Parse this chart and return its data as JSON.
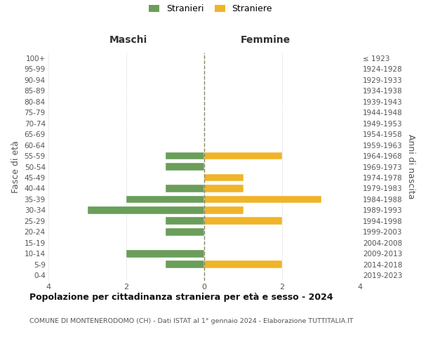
{
  "age_groups": [
    "100+",
    "95-99",
    "90-94",
    "85-89",
    "80-84",
    "75-79",
    "70-74",
    "65-69",
    "60-64",
    "55-59",
    "50-54",
    "45-49",
    "40-44",
    "35-39",
    "30-34",
    "25-29",
    "20-24",
    "15-19",
    "10-14",
    "5-9",
    "0-4"
  ],
  "birth_years": [
    "≤ 1923",
    "1924-1928",
    "1929-1933",
    "1934-1938",
    "1939-1943",
    "1944-1948",
    "1949-1953",
    "1954-1958",
    "1959-1963",
    "1964-1968",
    "1969-1973",
    "1974-1978",
    "1979-1983",
    "1984-1988",
    "1989-1993",
    "1994-1998",
    "1999-2003",
    "2004-2008",
    "2009-2013",
    "2014-2018",
    "2019-2023"
  ],
  "maschi": [
    0,
    0,
    0,
    0,
    0,
    0,
    0,
    0,
    0,
    1,
    1,
    0,
    1,
    2,
    3,
    1,
    1,
    0,
    2,
    1,
    0
  ],
  "femmine": [
    0,
    0,
    0,
    0,
    0,
    0,
    0,
    0,
    0,
    2,
    0,
    1,
    1,
    3,
    1,
    2,
    0,
    0,
    0,
    2,
    0
  ],
  "color_maschi": "#6a9e5a",
  "color_femmine": "#f0b429",
  "title": "Popolazione per cittadinanza straniera per età e sesso - 2024",
  "subtitle": "COMUNE DI MONTENERODOMO (CH) - Dati ISTAT al 1° gennaio 2024 - Elaborazione TUTTITALIA.IT",
  "xlabel_left": "Maschi",
  "xlabel_right": "Femmine",
  "ylabel_left": "Fasce di età",
  "ylabel_right": "Anni di nascita",
  "legend_maschi": "Stranieri",
  "legend_femmine": "Straniere",
  "xlim": 4,
  "background_color": "#ffffff",
  "grid_color": "#cccccc"
}
